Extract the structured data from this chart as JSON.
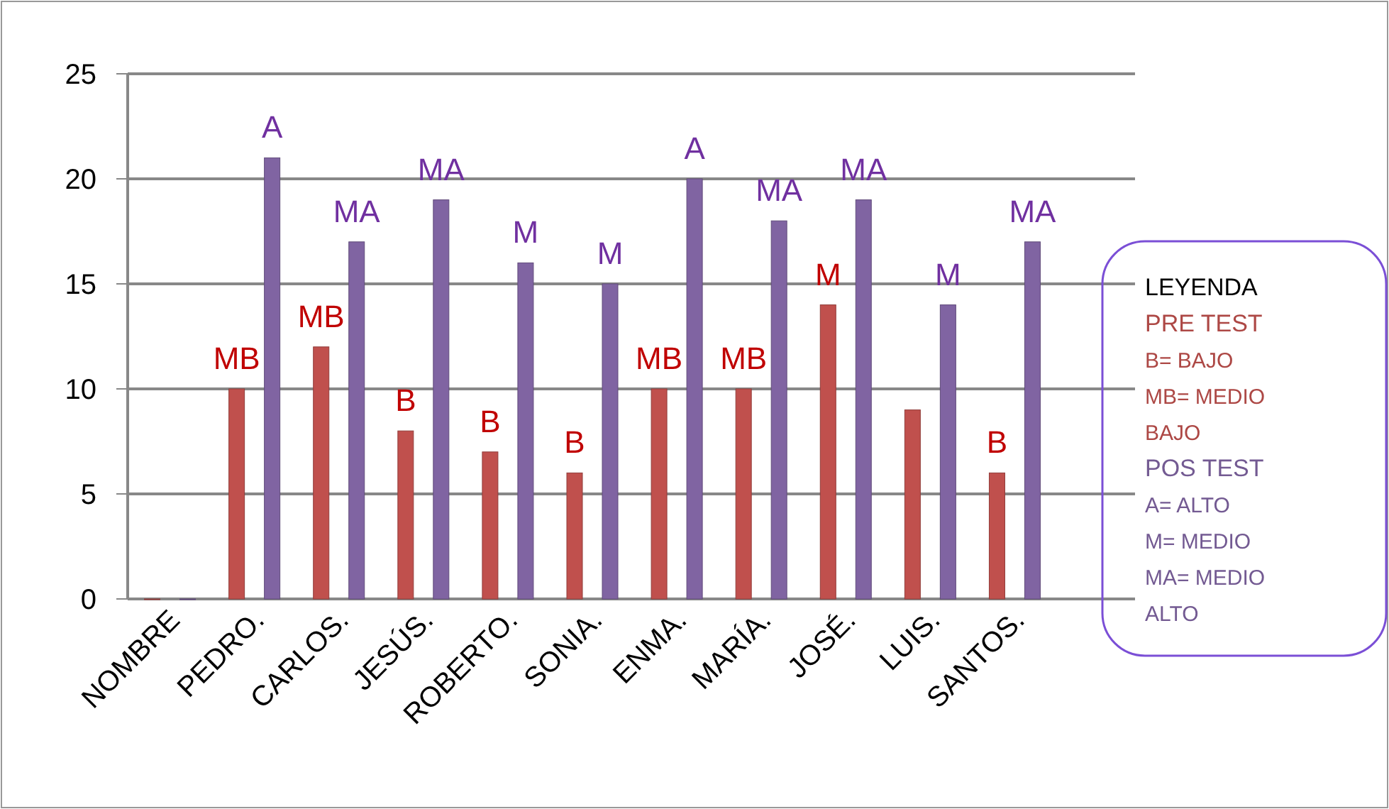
{
  "chart_data": {
    "type": "bar",
    "categories": [
      "NOMBRE",
      "PEDRO.",
      "CARLOS.",
      "JESÚS.",
      "ROBERTO.",
      "SONIA.",
      "ENMA.",
      "MARÍA.",
      "JOSÉ.",
      "LUIS.",
      "SANTOS."
    ],
    "series": [
      {
        "name": "PRE TEST",
        "color": "#c0504d",
        "values": [
          0,
          10,
          12,
          8,
          7,
          6,
          10,
          10,
          14,
          9,
          6
        ],
        "value_labels": [
          null,
          "MB",
          "MB",
          "B",
          "B",
          "B",
          "MB",
          "MB",
          "M",
          null,
          "B"
        ]
      },
      {
        "name": "POS TEST",
        "color": "#8064a2",
        "values": [
          0,
          21,
          17,
          19,
          16,
          15,
          20,
          18,
          19,
          14,
          17
        ],
        "value_labels": [
          null,
          "A",
          "MA",
          "MA",
          "M",
          "M",
          "A",
          "MA",
          "MA",
          "M",
          "MA"
        ]
      }
    ],
    "ylim": [
      0,
      25
    ],
    "yticks": [
      0,
      5,
      10,
      15,
      20,
      25
    ],
    "grid": "y",
    "legend": "right",
    "legend_title": "LEYENDA",
    "annotations": [
      "B= BAJO",
      "MB= MEDIO BAJO",
      "A= ALTO",
      "M= MEDIO",
      "MA= MEDIO ALTO"
    ]
  }
}
